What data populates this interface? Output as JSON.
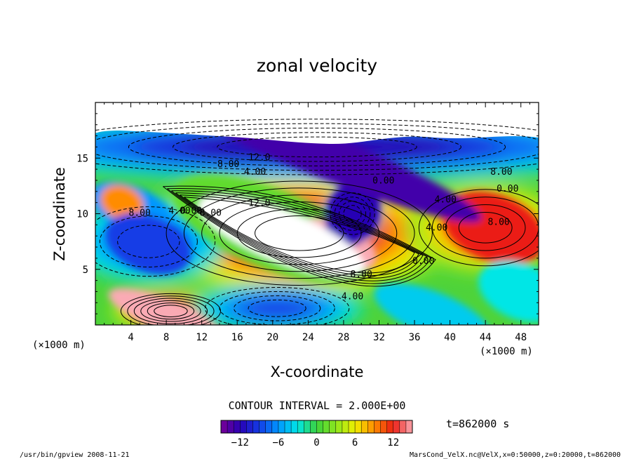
{
  "chart_data": {
    "type": "heatmap",
    "title": "zonal velocity",
    "xlabel": "X-coordinate",
    "ylabel": "Z-coordinate",
    "x_units": "(×1000 m)",
    "y_units": "(×1000 m)",
    "xlim": [
      0,
      50
    ],
    "ylim": [
      0,
      20
    ],
    "x_ticks": [
      "4",
      "8",
      "12",
      "16",
      "20",
      "24",
      "28",
      "32",
      "36",
      "40",
      "44",
      "48"
    ],
    "x_tick_values": [
      4,
      8,
      12,
      16,
      20,
      24,
      28,
      32,
      36,
      40,
      44,
      48
    ],
    "y_ticks": [
      "5",
      "10",
      "15"
    ],
    "y_tick_values": [
      5,
      10,
      15
    ],
    "contour_interval_text": "CONTOUR INTERVAL = 2.000E+00",
    "time_text": "t=862000 s",
    "colorbar": {
      "min": -15,
      "max": 15,
      "ticks": [
        "−12",
        "−6",
        "0",
        "6",
        "12"
      ],
      "tick_values": [
        -12,
        -6,
        0,
        6,
        12
      ]
    },
    "contour_labels": [
      {
        "text": "12.0",
        "x": 18.5,
        "z": 14.8
      },
      {
        "text": "8.00",
        "x": 15.0,
        "z": 14.2
      },
      {
        "text": "4.00",
        "x": 18.0,
        "z": 13.5
      },
      {
        "text": "0.00",
        "x": 32.5,
        "z": 12.7
      },
      {
        "text": "8.00",
        "x": 45.8,
        "z": 13.5
      },
      {
        "text": "0.00",
        "x": 46.5,
        "z": 12.0
      },
      {
        "text": "4.00",
        "x": 39.5,
        "z": 11.0
      },
      {
        "text": "12.0",
        "x": 18.5,
        "z": 10.7
      },
      {
        "text": "8.00",
        "x": 13.0,
        "z": 9.8
      },
      {
        "text": "0.00",
        "x": 10.8,
        "z": 10.0
      },
      {
        "text": "4.00",
        "x": 9.5,
        "z": 10.0
      },
      {
        "text": "8.00",
        "x": 5.0,
        "z": 9.8
      },
      {
        "text": "4.00",
        "x": 38.5,
        "z": 8.5
      },
      {
        "text": "8.00",
        "x": 45.5,
        "z": 9.0
      },
      {
        "text": "0.00",
        "x": 37.0,
        "z": 5.5
      },
      {
        "text": "8.00",
        "x": 30.0,
        "z": 4.3
      },
      {
        "text": "4.00",
        "x": 29.0,
        "z": 2.3
      }
    ],
    "features": [
      {
        "kind": "jet-max",
        "x0": 11,
        "x1": 35,
        "z0": 4.5,
        "z1": 12.0,
        "value": 14
      },
      {
        "kind": "jet-max",
        "x0": 4,
        "x1": 13,
        "z0": 0,
        "z1": 2.5,
        "value": 14
      },
      {
        "kind": "jet-max",
        "x0": 38,
        "x1": 50,
        "z0": 6,
        "z1": 11.5,
        "value": 11
      },
      {
        "kind": "jet-min",
        "x0": 0,
        "x1": 12,
        "z0": 5,
        "z1": 10,
        "value": -8
      },
      {
        "kind": "jet-min",
        "x0": 27,
        "x1": 31,
        "z0": 8.5,
        "z1": 11.5,
        "value": -10
      },
      {
        "kind": "jet-min",
        "x0": 14,
        "x1": 27,
        "z0": 0,
        "z1": 3,
        "value": -9
      },
      {
        "kind": "jet-min",
        "x0": 0,
        "x1": 50,
        "z0": 14,
        "z1": 18,
        "value": -12
      }
    ]
  },
  "footer": {
    "left": "/usr/bin/gpview   2008-11-21",
    "right": "MarsCond_VelX.nc@VelX,x=0:50000,z=0:20000,t=862000"
  }
}
